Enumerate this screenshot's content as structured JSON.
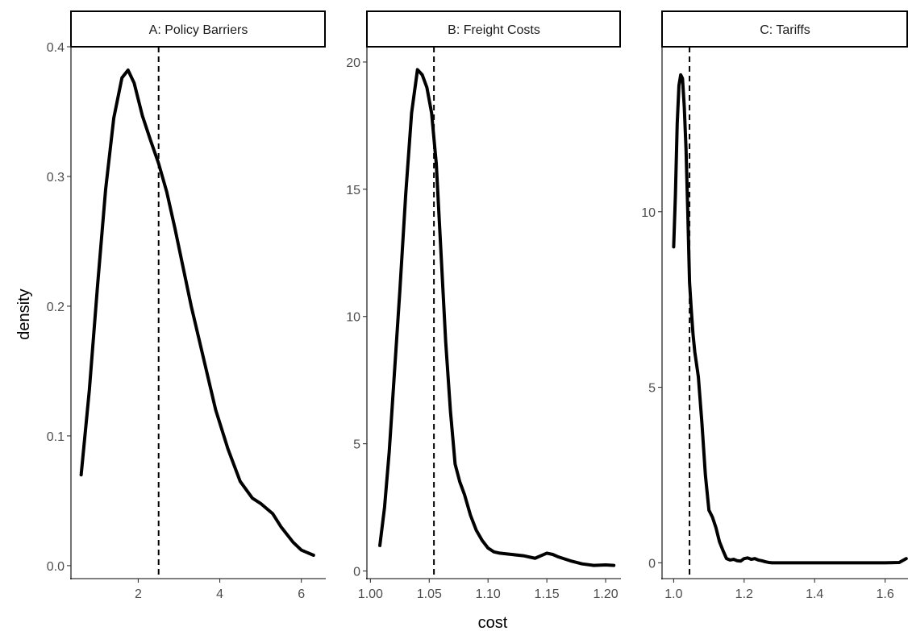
{
  "chart_data": {
    "type": "line",
    "xlabel": "cost",
    "ylabel": "density",
    "legend": "none",
    "grid": false,
    "colors": {
      "line": "#000000",
      "reference_line": "#000000"
    },
    "panels": [
      {
        "title": "A: Policy Barriers",
        "xlim": [
          0.35,
          6.6
        ],
        "ylim": [
          -0.01,
          0.4
        ],
        "xticks": [
          2,
          4,
          6
        ],
        "xtick_labels": [
          "2",
          "4",
          "6"
        ],
        "yticks": [
          0.0,
          0.1,
          0.2,
          0.3,
          0.4
        ],
        "ytick_labels": [
          "0.0",
          "0.1",
          "0.2",
          "0.3",
          "0.4"
        ],
        "vline": 2.5,
        "x": [
          0.6,
          0.8,
          1.0,
          1.2,
          1.4,
          1.6,
          1.75,
          1.9,
          2.1,
          2.3,
          2.5,
          2.7,
          2.9,
          3.1,
          3.3,
          3.6,
          3.9,
          4.2,
          4.5,
          4.8,
          5.0,
          5.3,
          5.5,
          5.8,
          6.0,
          6.3
        ],
        "y": [
          0.07,
          0.135,
          0.215,
          0.29,
          0.345,
          0.376,
          0.382,
          0.372,
          0.347,
          0.328,
          0.31,
          0.288,
          0.26,
          0.23,
          0.2,
          0.16,
          0.12,
          0.09,
          0.065,
          0.052,
          0.048,
          0.04,
          0.03,
          0.018,
          0.012,
          0.008
        ]
      },
      {
        "title": "B: Freight Costs",
        "xlim": [
          0.997,
          1.213
        ],
        "ylim": [
          -0.3,
          20.6
        ],
        "xticks": [
          1.0,
          1.05,
          1.1,
          1.15,
          1.2
        ],
        "xtick_labels": [
          "1.00",
          "1.05",
          "1.10",
          "1.15",
          "1.20"
        ],
        "yticks": [
          0,
          5,
          10,
          15,
          20
        ],
        "ytick_labels": [
          "0",
          "5",
          "10",
          "15",
          "20"
        ],
        "vline": 1.054,
        "x": [
          1.008,
          1.012,
          1.016,
          1.02,
          1.025,
          1.03,
          1.035,
          1.04,
          1.044,
          1.048,
          1.052,
          1.056,
          1.06,
          1.064,
          1.068,
          1.072,
          1.076,
          1.08,
          1.085,
          1.09,
          1.095,
          1.1,
          1.105,
          1.11,
          1.12,
          1.13,
          1.14,
          1.145,
          1.15,
          1.155,
          1.16,
          1.17,
          1.18,
          1.19,
          1.2,
          1.207
        ],
        "y": [
          1.0,
          2.5,
          4.7,
          7.5,
          11.0,
          14.8,
          18.0,
          19.7,
          19.5,
          19.0,
          18.0,
          16.0,
          12.5,
          9.0,
          6.3,
          4.2,
          3.5,
          3.0,
          2.2,
          1.6,
          1.2,
          0.9,
          0.75,
          0.7,
          0.65,
          0.6,
          0.5,
          0.6,
          0.7,
          0.65,
          0.55,
          0.4,
          0.28,
          0.22,
          0.24,
          0.22
        ]
      },
      {
        "title": "C: Tariffs",
        "xlim": [
          0.967,
          1.665
        ],
        "ylim": [
          -0.45,
          14.7
        ],
        "xticks": [
          1.0,
          1.2,
          1.4,
          1.6
        ],
        "xtick_labels": [
          "1.0",
          "1.2",
          "1.4",
          "1.6"
        ],
        "yticks": [
          0,
          5,
          10
        ],
        "ytick_labels": [
          "0",
          "5",
          "10"
        ],
        "vline": 1.045,
        "x": [
          1.0,
          1.005,
          1.01,
          1.015,
          1.02,
          1.025,
          1.03,
          1.035,
          1.04,
          1.045,
          1.05,
          1.055,
          1.06,
          1.07,
          1.08,
          1.09,
          1.1,
          1.11,
          1.12,
          1.13,
          1.14,
          1.15,
          1.16,
          1.17,
          1.18,
          1.19,
          1.2,
          1.21,
          1.22,
          1.23,
          1.24,
          1.25,
          1.26,
          1.27,
          1.28,
          1.3,
          1.4,
          1.5,
          1.6,
          1.64,
          1.66
        ],
        "y": [
          9.0,
          10.5,
          12.5,
          13.6,
          13.9,
          13.8,
          13.0,
          11.8,
          10.0,
          8.0,
          7.2,
          6.5,
          6.0,
          5.3,
          4.0,
          2.5,
          1.5,
          1.3,
          1.0,
          0.6,
          0.35,
          0.12,
          0.08,
          0.1,
          0.06,
          0.05,
          0.12,
          0.14,
          0.1,
          0.12,
          0.08,
          0.06,
          0.03,
          0.01,
          0.0,
          0.0,
          0.0,
          0.0,
          0.0,
          0.01,
          0.12
        ]
      }
    ]
  }
}
